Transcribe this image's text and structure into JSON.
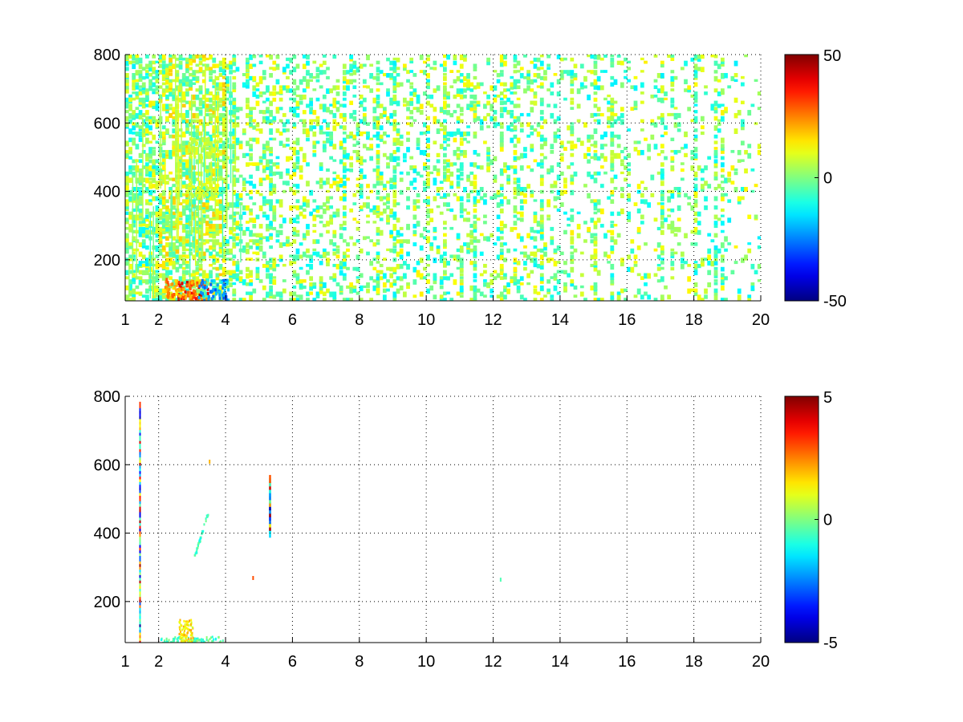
{
  "chart_data": [
    {
      "type": "heatmap",
      "title": "",
      "xlabel": "",
      "ylabel": "",
      "xlim": [
        1,
        20
      ],
      "ylim": [
        80,
        800
      ],
      "x_ticks": [
        1,
        2,
        4,
        6,
        8,
        10,
        12,
        14,
        16,
        18,
        20
      ],
      "x_tick_labels": [
        "1",
        "2",
        "4",
        "6",
        "8",
        "10",
        "12",
        "14",
        "16",
        "18",
        "20"
      ],
      "y_ticks": [
        200,
        400,
        600,
        800
      ],
      "y_tick_labels": [
        "200",
        "400",
        "600",
        "800"
      ],
      "grid": true,
      "colormap": "jet",
      "colorbar": {
        "range": [
          -50,
          50
        ],
        "ticks": [
          50,
          0,
          -50
        ],
        "tick_labels": [
          "50",
          "0",
          "-50"
        ]
      },
      "field": {
        "description_of_values": "sparse field, mostly near 0, strong values near 2.5-3.7 at bottom",
        "dense_bands_x": [
          1.4,
          2.8,
          3.2,
          3.7,
          4.2,
          5.3,
          6.0,
          7.5,
          8.5,
          9.0,
          10.0,
          10.5,
          11.0,
          11.4,
          12.2,
          12.6,
          13.4,
          14.3,
          15.0,
          15.5,
          17.0,
          17.3,
          18.0,
          18.6,
          18.8,
          20.0
        ],
        "hotspots": [
          {
            "x": 3.0,
            "y": 80,
            "value": 45
          },
          {
            "x": 2.6,
            "y": 90,
            "value": 30
          },
          {
            "x": 3.6,
            "y": 85,
            "value": -30
          },
          {
            "x": 3.3,
            "y": 380,
            "value": 12
          },
          {
            "x": 3.3,
            "y": 500,
            "value": 10
          }
        ]
      }
    },
    {
      "type": "heatmap",
      "title": "",
      "xlabel": "",
      "ylabel": "",
      "xlim": [
        1,
        20
      ],
      "ylim": [
        80,
        800
      ],
      "x_ticks": [
        1,
        2,
        4,
        6,
        8,
        10,
        12,
        14,
        16,
        18,
        20
      ],
      "x_tick_labels": [
        "1",
        "2",
        "4",
        "6",
        "8",
        "10",
        "12",
        "14",
        "16",
        "18",
        "20"
      ],
      "y_ticks": [
        200,
        400,
        600,
        800
      ],
      "y_tick_labels": [
        "200",
        "400",
        "600",
        "800"
      ],
      "grid": true,
      "colormap": "jet",
      "colorbar": {
        "range": [
          -5,
          5
        ],
        "ticks": [
          5,
          0,
          -5
        ],
        "tick_labels": [
          "5",
          "0",
          "-5"
        ]
      },
      "field": {
        "features": [
          {
            "kind": "vline",
            "x": 1.42,
            "y0": 80,
            "y1": 780,
            "value": 3
          },
          {
            "kind": "segment",
            "x": 5.3,
            "y0": 400,
            "y1": 570,
            "value": 4
          },
          {
            "kind": "cluster",
            "x0": 2.0,
            "x1": 3.9,
            "y0": 80,
            "y1": 100,
            "value": -0.5
          },
          {
            "kind": "cluster",
            "x0": 2.6,
            "x1": 3.0,
            "y0": 80,
            "y1": 150,
            "value": 1.5
          },
          {
            "kind": "trail",
            "x0": 3.05,
            "x1": 3.45,
            "y0": 330,
            "y1": 460,
            "value": -0.6
          },
          {
            "kind": "dot",
            "x": 4.8,
            "y": 270,
            "value": 3
          },
          {
            "kind": "dot",
            "x": 3.5,
            "y": 610,
            "value": 2
          },
          {
            "kind": "dot",
            "x": 12.2,
            "y": 265,
            "value": -0.5
          }
        ]
      }
    }
  ]
}
